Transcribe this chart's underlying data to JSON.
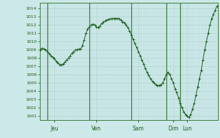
{
  "background_color": "#cce8e8",
  "plot_bg_color": "#cce8e8",
  "grid_major_color": "#aacccc",
  "grid_minor_color": "#bbdddd",
  "line_color": "#1a5c1a",
  "marker_color": "#1a5c1a",
  "ylim": [
    1000.5,
    1014.7
  ],
  "yticks": [
    1001,
    1002,
    1003,
    1004,
    1005,
    1006,
    1007,
    1008,
    1009,
    1010,
    1011,
    1012,
    1013,
    1014
  ],
  "day_labels": [
    "Jeu",
    "Ven",
    "Sam",
    "Dim",
    "Lun"
  ],
  "day_tick_positions": [
    8,
    32,
    56,
    76,
    84
  ],
  "vline_positions": [
    4,
    28,
    52,
    72,
    80
  ],
  "pressure_values": [
    1009.0,
    1009.2,
    1009.1,
    1009.0,
    1008.8,
    1008.5,
    1008.3,
    1008.1,
    1007.9,
    1007.6,
    1007.4,
    1007.2,
    1007.2,
    1007.3,
    1007.5,
    1007.8,
    1008.0,
    1008.3,
    1008.6,
    1008.8,
    1009.0,
    1009.0,
    1009.1,
    1009.1,
    1009.5,
    1010.2,
    1011.0,
    1011.5,
    1011.8,
    1012.0,
    1012.1,
    1012.0,
    1011.8,
    1011.7,
    1011.9,
    1012.2,
    1012.4,
    1012.5,
    1012.6,
    1012.7,
    1012.75,
    1012.75,
    1012.8,
    1012.8,
    1012.8,
    1012.75,
    1012.6,
    1012.4,
    1012.3,
    1012.0,
    1011.7,
    1011.3,
    1010.8,
    1010.3,
    1009.8,
    1009.3,
    1008.8,
    1008.3,
    1007.8,
    1007.3,
    1006.8,
    1006.3,
    1005.9,
    1005.5,
    1005.2,
    1005.0,
    1004.8,
    1004.7,
    1004.7,
    1004.8,
    1005.0,
    1005.5,
    1006.0,
    1006.3,
    1006.0,
    1005.5,
    1005.0,
    1004.3,
    1003.8,
    1003.2,
    1002.5,
    1002.0,
    1001.5,
    1001.2,
    1001.0,
    1000.8,
    1001.2,
    1001.8,
    1002.5,
    1003.5,
    1004.5,
    1005.5,
    1006.5,
    1007.8,
    1009.0,
    1010.0,
    1011.0,
    1012.0,
    1012.8,
    1013.3,
    1013.8,
    1014.3
  ]
}
